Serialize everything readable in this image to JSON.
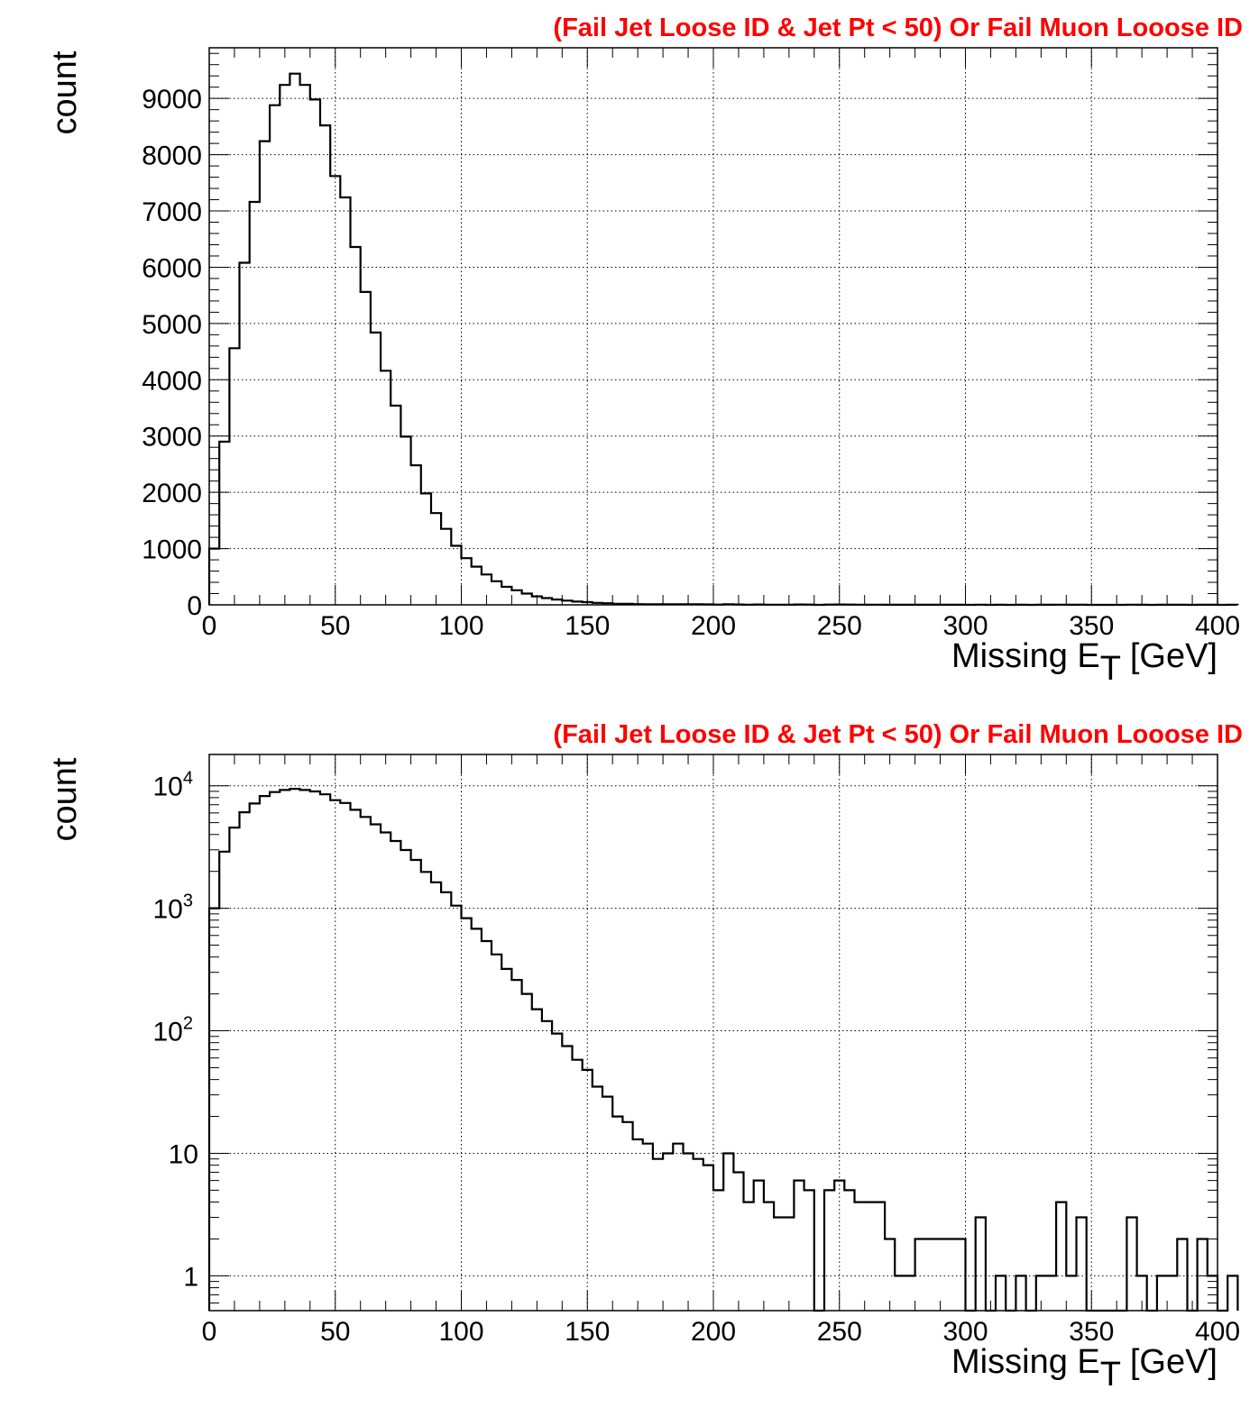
{
  "chart_data": [
    {
      "type": "histogram",
      "title": "(Fail Jet Loose ID & Jet Pt < 50) Or Fail Muon Looose ID",
      "xlabel_main": "Missing E",
      "xlabel_sub": "T",
      "xlabel_unit": " [GeV]",
      "ylabel": "count",
      "xlim": [
        0,
        400
      ],
      "ylim": [
        0,
        9900
      ],
      "yscale": "linear",
      "grid": true,
      "bin_width": 4,
      "x_ticks": [
        "0",
        "50",
        "100",
        "150",
        "200",
        "250",
        "300",
        "350",
        "400"
      ],
      "y_ticks": [
        "0",
        "1000",
        "2000",
        "3000",
        "4000",
        "5000",
        "6000",
        "7000",
        "8000",
        "9000"
      ],
      "values": [
        1000,
        2900,
        4560,
        6080,
        7160,
        8240,
        8880,
        9240,
        9440,
        9240,
        8980,
        8520,
        7620,
        7240,
        6360,
        5560,
        4840,
        4160,
        3540,
        2990,
        2480,
        1980,
        1630,
        1350,
        1050,
        830,
        680,
        540,
        420,
        320,
        260,
        200,
        150,
        120,
        95,
        75,
        58,
        48,
        35,
        29,
        20,
        18,
        13,
        12,
        9,
        10,
        12,
        10,
        9,
        8,
        5,
        10,
        7,
        4,
        6,
        4,
        3,
        3,
        6,
        5,
        0.5,
        5,
        6,
        5,
        4,
        4,
        4,
        2,
        1,
        1,
        2,
        2,
        2,
        2,
        2,
        0.5,
        3,
        0.5,
        1,
        0.5,
        1,
        0.5,
        1,
        1,
        4,
        1,
        3,
        0.5,
        0.5,
        0.5,
        0.5,
        3,
        1,
        0.5,
        1,
        1,
        2,
        0.5,
        2,
        1,
        0.5,
        1
      ]
    },
    {
      "type": "histogram",
      "title": "(Fail Jet Loose ID & Jet Pt < 50) Or Fail Muon Looose ID",
      "xlabel_main": "Missing E",
      "xlabel_sub": "T",
      "xlabel_unit": " [GeV]",
      "ylabel": "count",
      "xlim": [
        0,
        400
      ],
      "ylim": [
        0.52,
        18000
      ],
      "yscale": "log",
      "grid": true,
      "bin_width": 4,
      "x_ticks": [
        "0",
        "50",
        "100",
        "150",
        "200",
        "250",
        "300",
        "350",
        "400"
      ],
      "y_ticks": [
        {
          "base": "1",
          "exp": ""
        },
        {
          "base": "10",
          "exp": ""
        },
        {
          "base": "10",
          "exp": "2"
        },
        {
          "base": "10",
          "exp": "3"
        },
        {
          "base": "10",
          "exp": "4"
        }
      ],
      "values": [
        1000,
        2900,
        4560,
        6080,
        7160,
        8240,
        8880,
        9240,
        9440,
        9240,
        8980,
        8520,
        7620,
        7240,
        6360,
        5560,
        4840,
        4160,
        3540,
        2990,
        2480,
        1980,
        1630,
        1350,
        1050,
        830,
        680,
        540,
        420,
        320,
        260,
        200,
        150,
        120,
        95,
        75,
        58,
        48,
        35,
        29,
        20,
        18,
        13,
        12,
        9,
        10,
        12,
        10,
        9,
        8,
        5,
        10,
        7,
        4,
        6,
        4,
        3,
        3,
        6,
        5,
        0.5,
        5,
        6,
        5,
        4,
        4,
        4,
        2,
        1,
        1,
        2,
        2,
        2,
        2,
        2,
        0.5,
        3,
        0.5,
        1,
        0.5,
        1,
        0.5,
        1,
        1,
        4,
        1,
        3,
        0.5,
        0.5,
        0.5,
        0.5,
        3,
        1,
        0.5,
        1,
        1,
        2,
        0.5,
        2,
        1,
        0.5,
        1
      ]
    }
  ]
}
